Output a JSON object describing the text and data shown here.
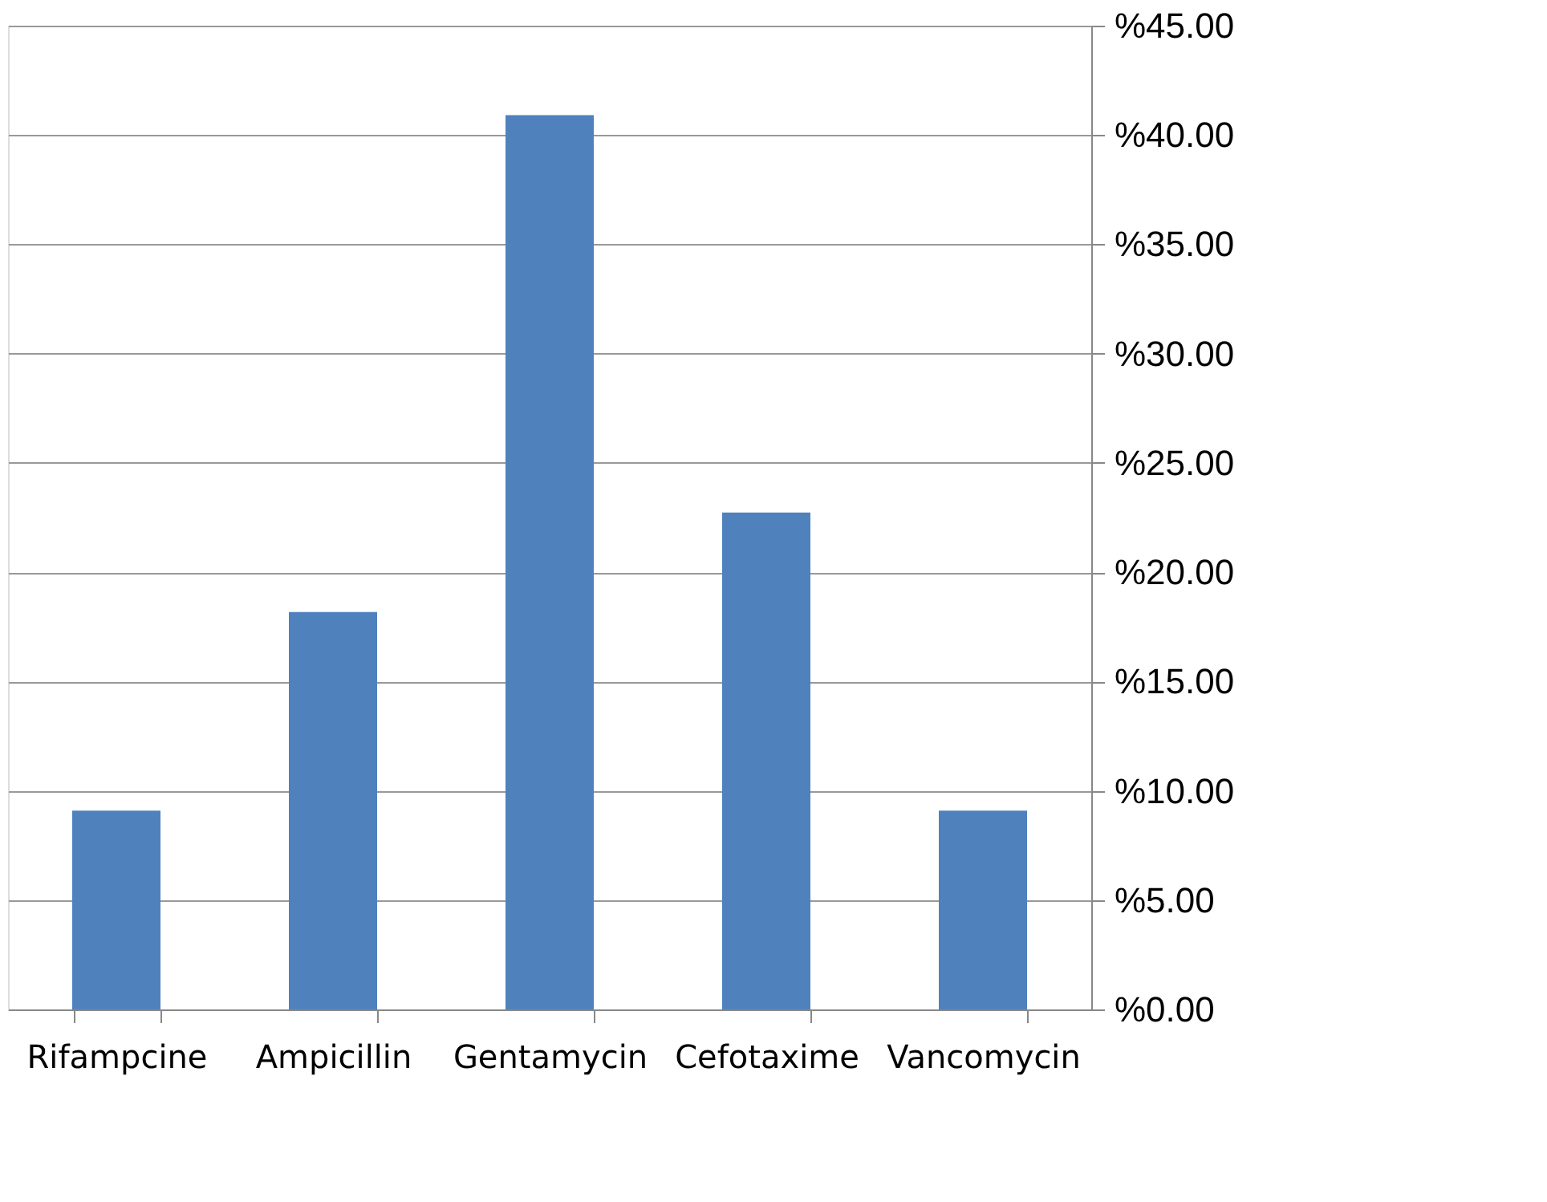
{
  "chart_data": {
    "type": "bar",
    "categories": [
      "Rifampcine",
      "Ampicillin",
      "Gentamycin",
      "Cefotaxime",
      "Vancomycin"
    ],
    "values": [
      9.09,
      18.18,
      40.91,
      22.73,
      9.09
    ],
    "color": "#4f81bd",
    "ylim": [
      0,
      45
    ],
    "yticks": [
      {
        "value": 0,
        "label": "%0.00"
      },
      {
        "value": 5,
        "label": "%5.00"
      },
      {
        "value": 10,
        "label": "%10.00"
      },
      {
        "value": 15,
        "label": "%15.00"
      },
      {
        "value": 20,
        "label": "%20.00"
      },
      {
        "value": 25,
        "label": "%25.00"
      },
      {
        "value": 30,
        "label": "%30.00"
      },
      {
        "value": 35,
        "label": "%35.00"
      },
      {
        "value": 40,
        "label": "%40.00"
      },
      {
        "value": 45,
        "label": "%45.00"
      }
    ],
    "grid": "y"
  }
}
